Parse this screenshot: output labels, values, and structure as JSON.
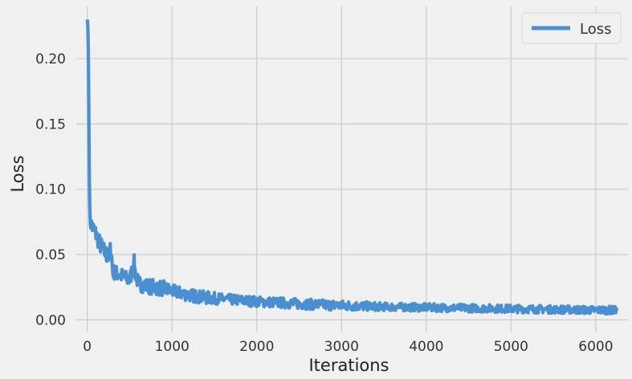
{
  "chart_data": {
    "type": "line",
    "title": "",
    "xlabel": "Iterations",
    "ylabel": "Loss",
    "xlim": [
      -130,
      6380
    ],
    "ylim": [
      -0.009,
      0.24
    ],
    "xticks": [
      0,
      1000,
      2000,
      3000,
      4000,
      5000,
      6000
    ],
    "yticks": [
      0.0,
      0.05,
      0.1,
      0.15,
      0.2
    ],
    "xtick_labels": [
      "0",
      "1000",
      "2000",
      "3000",
      "4000",
      "5000",
      "6000"
    ],
    "ytick_labels": [
      "0.00",
      "0.05",
      "0.10",
      "0.15",
      "0.20"
    ],
    "grid": true,
    "legend_position": "top-right",
    "series": [
      {
        "name": "Loss",
        "color": "#4a90d0",
        "x": [
          0,
          10,
          20,
          30,
          50,
          100,
          150,
          200,
          250,
          280,
          300,
          400,
          500,
          550,
          560,
          600,
          700,
          800,
          900,
          1000,
          1200,
          1400,
          1600,
          1800,
          2000,
          2300,
          2600,
          3000,
          3500,
          4000,
          4500,
          5000,
          5500,
          6000,
          6250
        ],
        "y": [
          0.23,
          0.22,
          0.15,
          0.078,
          0.072,
          0.066,
          0.058,
          0.052,
          0.048,
          0.055,
          0.037,
          0.034,
          0.03,
          0.044,
          0.038,
          0.028,
          0.026,
          0.025,
          0.024,
          0.022,
          0.019,
          0.017,
          0.016,
          0.015,
          0.014,
          0.013,
          0.012,
          0.011,
          0.01,
          0.0095,
          0.009,
          0.0085,
          0.008,
          0.0075,
          0.0075
        ],
        "spread": [
          0,
          0.01,
          0.02,
          0.008,
          0.007,
          0.007,
          0.007,
          0.007,
          0.007,
          0.008,
          0.006,
          0.006,
          0.006,
          0.007,
          0.007,
          0.006,
          0.006,
          0.006,
          0.006,
          0.005,
          0.005,
          0.005,
          0.004,
          0.004,
          0.004,
          0.004,
          0.004,
          0.004,
          0.003,
          0.003,
          0.003,
          0.003,
          0.003,
          0.003,
          0.003
        ]
      }
    ]
  }
}
